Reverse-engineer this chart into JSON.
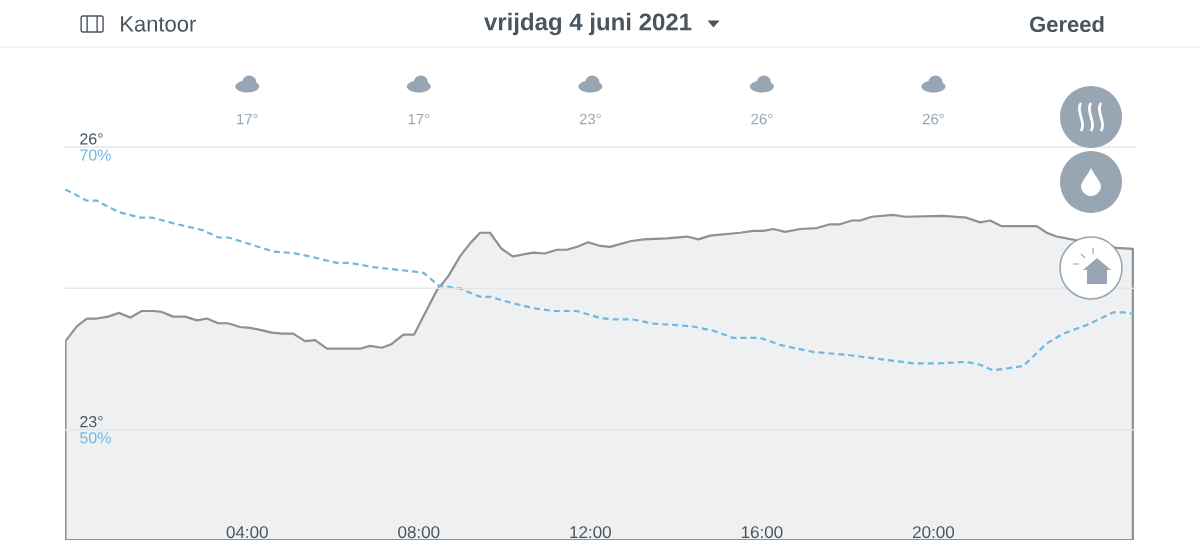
{
  "chart_data": {
    "type": "area",
    "title": "vrijdag 4 juni 2021",
    "annotations": [
      "Kantoor",
      "Gereed",
      "17°",
      "17°",
      "23°",
      "26°",
      "26°"
    ],
    "xlim": [
      -0.25,
      24.7
    ],
    "xticks": [
      {
        "value": 4,
        "label": "04:00"
      },
      {
        "value": 8,
        "label": "08:00"
      },
      {
        "value": 12,
        "label": "12:00"
      },
      {
        "value": 16,
        "label": "16:00"
      },
      {
        "value": 20,
        "label": "20:00"
      }
    ],
    "ylim": [
      21.83,
      26
    ],
    "yticks": [
      {
        "value": 23,
        "label": "23°"
      },
      {
        "value": 24.5,
        "label": null
      },
      {
        "value": 26,
        "label": "26°"
      }
    ],
    "y2lim": [
      42.2,
      70
    ],
    "y2ticks": [
      {
        "value": 50,
        "label": "50%"
      },
      {
        "value": 60,
        "label": null
      },
      {
        "value": 70,
        "label": "70%"
      }
    ],
    "grid": "y",
    "marker": "none",
    "series": [
      {
        "color": "#eef0f2",
        "x": [
          -0.24,
          0.03,
          0.26,
          0.49,
          0.76,
          1.01,
          1.27,
          1.54,
          1.81,
          2.01,
          2.27,
          2.55,
          2.83,
          3.06,
          3.32,
          3.55,
          3.83,
          4.07,
          4.3,
          4.57,
          4.81,
          5.07,
          5.35,
          5.58,
          5.86,
          6.63,
          6.86,
          7.14,
          7.37,
          7.64,
          7.89,
          8.42,
          8.69,
          8.96,
          9.2,
          9.43,
          9.66,
          9.93,
          10.19,
          10.67,
          10.94,
          11.22,
          11.45,
          11.68,
          11.95,
          12.23,
          12.46,
          12.93,
          13.24,
          13.78,
          14.25,
          14.52,
          14.79,
          15.49,
          15.8,
          16.03,
          16.27,
          16.54,
          16.89,
          17.28,
          17.59,
          17.82,
          18.1,
          18.29,
          18.56,
          19.06,
          19.34,
          20.23,
          20.77,
          21.09,
          21.32,
          21.59,
          22.41,
          22.64,
          22.87,
          24.27,
          24.65
        ],
        "values": [
          23.94,
          24.1,
          24.18,
          24.18,
          24.2,
          24.24,
          24.19,
          24.26,
          24.26,
          24.25,
          24.2,
          24.2,
          24.16,
          24.18,
          24.13,
          24.13,
          24.09,
          24.08,
          24.06,
          24.03,
          24.02,
          24.02,
          23.94,
          23.95,
          23.86,
          23.86,
          23.89,
          23.87,
          23.91,
          24.01,
          24.01,
          24.48,
          24.63,
          24.84,
          24.98,
          25.09,
          25.09,
          24.92,
          24.84,
          24.88,
          24.87,
          24.91,
          24.91,
          24.94,
          24.99,
          24.95,
          24.94,
          25.0,
          25.02,
          25.03,
          25.05,
          25.02,
          25.06,
          25.09,
          25.11,
          25.11,
          25.13,
          25.1,
          25.13,
          25.14,
          25.18,
          25.18,
          25.22,
          25.22,
          25.26,
          25.28,
          25.26,
          25.27,
          25.25,
          25.2,
          25.22,
          25.16,
          25.16,
          25.09,
          25.05,
          24.93,
          24.92
        ]
      },
      {
        "type": "line",
        "axis": "y2",
        "line_style": "dashed",
        "color": "#6fb8e0",
        "x": [
          -0.24,
          0.26,
          0.49,
          1.0,
          1.5,
          1.78,
          2.28,
          2.98,
          3.33,
          3.56,
          4.61,
          5.08,
          5.54,
          6.09,
          6.4,
          6.94,
          7.87,
          8.11,
          8.46,
          8.96,
          9.43,
          9.66,
          10.13,
          10.67,
          11.14,
          11.68,
          12.23,
          12.54,
          13.0,
          13.47,
          14.01,
          14.4,
          14.87,
          15.33,
          15.96,
          16.42,
          16.89,
          17.2,
          17.98,
          18.75,
          19.53,
          20.15,
          20.77,
          21.09,
          21.39,
          22.09,
          22.64,
          23.03,
          23.57,
          24.19,
          24.43,
          24.66
        ],
        "values": [
          67.0,
          66.2,
          66.2,
          65.4,
          65.0,
          65.0,
          64.6,
          64.1,
          63.6,
          63.6,
          62.6,
          62.5,
          62.2,
          61.8,
          61.8,
          61.5,
          61.2,
          61.1,
          60.2,
          60.0,
          59.4,
          59.4,
          59.0,
          58.6,
          58.4,
          58.4,
          57.9,
          57.8,
          57.8,
          57.5,
          57.4,
          57.3,
          57.0,
          56.5,
          56.5,
          56.0,
          55.7,
          55.5,
          55.3,
          55.0,
          54.7,
          54.7,
          54.8,
          54.6,
          54.2,
          54.5,
          56.1,
          56.8,
          57.4,
          58.3,
          58.3,
          58.2
        ]
      }
    ]
  }
}
